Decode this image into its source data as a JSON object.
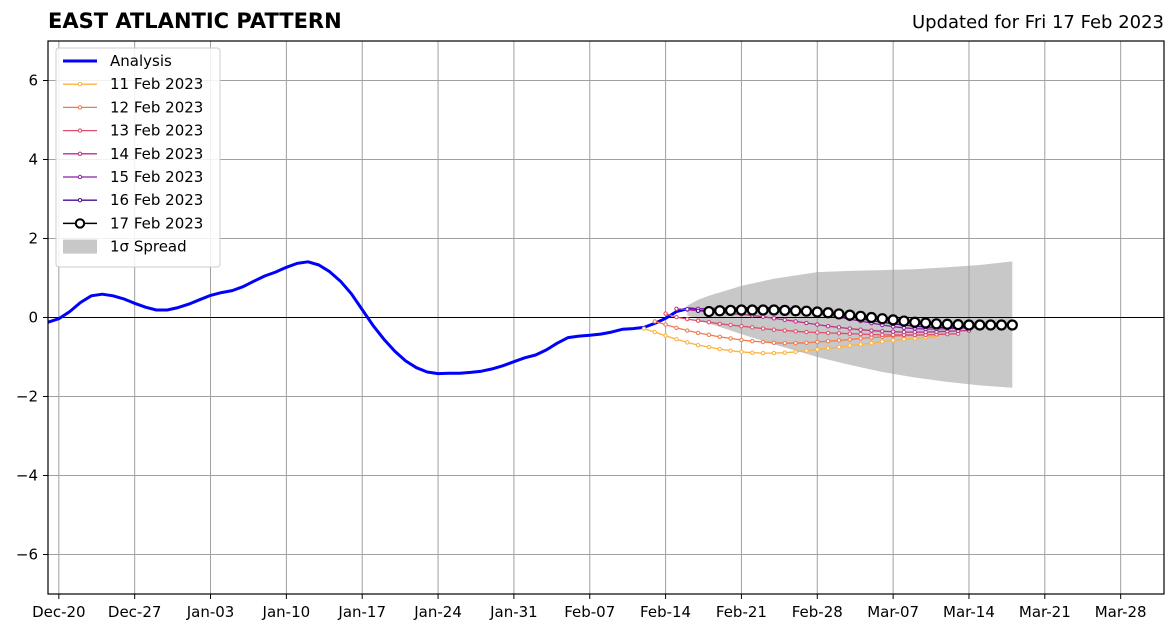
{
  "header": {
    "title": "EAST ATLANTIC PATTERN",
    "updated": "Updated for Fri 17 Feb 2023"
  },
  "chart_data": {
    "type": "line",
    "title": "EAST ATLANTIC PATTERN",
    "subtitle": "Updated for Fri 17 Feb 2023",
    "xlabel": "",
    "ylabel": "",
    "ylim": [
      -7,
      7
    ],
    "xlim": [
      "2022-12-19",
      "2023-04-01"
    ],
    "yticks": [
      -6,
      -4,
      -2,
      0,
      2,
      4,
      6
    ],
    "ytick_labels": [
      "−6",
      "−4",
      "−2",
      "0",
      "2",
      "4",
      "6"
    ],
    "xticks": [
      "2022-12-20",
      "2022-12-27",
      "2023-01-03",
      "2023-01-10",
      "2023-01-17",
      "2023-01-24",
      "2023-01-31",
      "2023-02-07",
      "2023-02-14",
      "2023-02-21",
      "2023-02-28",
      "2023-03-07",
      "2023-03-14",
      "2023-03-21",
      "2023-03-28"
    ],
    "xtick_labels": [
      "Dec-20",
      "Dec-27",
      "Jan-03",
      "Jan-10",
      "Jan-17",
      "Jan-24",
      "Jan-31",
      "Feb-07",
      "Feb-14",
      "Feb-21",
      "Feb-28",
      "Mar-07",
      "Mar-14",
      "Mar-21",
      "Mar-28"
    ],
    "grid": true,
    "legend_position": "upper-left",
    "legend": [
      "Analysis",
      "11 Feb 2023",
      "12 Feb 2023",
      "13 Feb 2023",
      "14 Feb 2023",
      "15 Feb 2023",
      "16 Feb 2023",
      "17 Feb 2023",
      "1σ Spread"
    ],
    "analysis": {
      "name": "Analysis",
      "color": "#0000ff",
      "start": "2022-12-19",
      "values": [
        -0.12,
        -0.03,
        0.15,
        0.38,
        0.55,
        0.59,
        0.55,
        0.47,
        0.36,
        0.26,
        0.19,
        0.19,
        0.25,
        0.34,
        0.45,
        0.56,
        0.63,
        0.68,
        0.78,
        0.92,
        1.05,
        1.15,
        1.27,
        1.37,
        1.41,
        1.33,
        1.16,
        0.92,
        0.6,
        0.2,
        -0.2,
        -0.55,
        -0.85,
        -1.1,
        -1.27,
        -1.38,
        -1.42,
        -1.41,
        -1.41,
        -1.39,
        -1.36,
        -1.3,
        -1.22,
        -1.12,
        -1.02,
        -0.95,
        -0.82,
        -0.65,
        -0.51,
        -0.47,
        -0.45,
        -0.42,
        -0.37,
        -0.3,
        -0.28,
        -0.25,
        -0.15,
        -0.02,
        0.15,
        0.22,
        0.2
      ]
    },
    "forecasts": [
      {
        "name": "11 Feb 2023",
        "color": "#fdb23c",
        "start": "2023-02-12",
        "values": [
          -0.28,
          -0.37,
          -0.46,
          -0.55,
          -0.63,
          -0.7,
          -0.75,
          -0.8,
          -0.84,
          -0.87,
          -0.89,
          -0.9,
          -0.9,
          -0.89,
          -0.87,
          -0.84,
          -0.81,
          -0.78,
          -0.75,
          -0.71,
          -0.68,
          -0.65,
          -0.61,
          -0.58,
          -0.55,
          -0.53,
          -0.5,
          -0.48
        ]
      },
      {
        "name": "12 Feb 2023",
        "color": "#f3794d",
        "start": "2023-02-13",
        "values": [
          -0.1,
          -0.18,
          -0.26,
          -0.33,
          -0.39,
          -0.44,
          -0.49,
          -0.53,
          -0.57,
          -0.6,
          -0.62,
          -0.64,
          -0.65,
          -0.65,
          -0.64,
          -0.62,
          -0.6,
          -0.58,
          -0.56,
          -0.53,
          -0.51,
          -0.49,
          -0.47,
          -0.46,
          -0.45,
          -0.44,
          -0.43,
          -0.42
        ]
      },
      {
        "name": "13 Feb 2023",
        "color": "#dd4f6f",
        "start": "2023-02-14",
        "values": [
          0.1,
          0.01,
          -0.04,
          -0.08,
          -0.12,
          -0.16,
          -0.19,
          -0.22,
          -0.25,
          -0.28,
          -0.31,
          -0.33,
          -0.35,
          -0.37,
          -0.38,
          -0.39,
          -0.4,
          -0.41,
          -0.42,
          -0.43,
          -0.44,
          -0.44,
          -0.44,
          -0.44,
          -0.44,
          -0.43,
          -0.42,
          -0.41
        ]
      },
      {
        "name": "14 Feb 2023",
        "color": "#b83289",
        "start": "2023-02-15",
        "values": [
          0.22,
          0.2,
          0.17,
          0.15,
          0.13,
          0.1,
          0.08,
          0.05,
          0.02,
          -0.02,
          -0.06,
          -0.1,
          -0.14,
          -0.18,
          -0.22,
          -0.25,
          -0.28,
          -0.31,
          -0.33,
          -0.35,
          -0.36,
          -0.37,
          -0.37,
          -0.37,
          -0.36,
          -0.35,
          -0.34,
          -0.33
        ]
      },
      {
        "name": "15 Feb 2023",
        "color": "#8a1ea0",
        "start": "2023-02-16",
        "values": [
          0.21,
          0.22,
          0.23,
          0.24,
          0.24,
          0.25,
          0.25,
          0.25,
          0.24,
          0.22,
          0.19,
          0.15,
          0.11,
          0.06,
          0.01,
          -0.04,
          -0.09,
          -0.14,
          -0.19,
          -0.23,
          -0.26,
          -0.28,
          -0.29,
          -0.29,
          -0.28,
          -0.27,
          -0.26,
          -0.25
        ]
      },
      {
        "name": "16 Feb 2023",
        "color": "#4a0c8f",
        "start": "2023-02-17",
        "values": [
          0.17,
          0.19,
          0.21,
          0.22,
          0.23,
          0.24,
          0.25,
          0.25,
          0.24,
          0.22,
          0.2,
          0.16,
          0.12,
          0.07,
          0.02,
          -0.03,
          -0.08,
          -0.12,
          -0.16,
          -0.19,
          -0.22,
          -0.24,
          -0.25,
          -0.25,
          -0.24,
          -0.23,
          -0.22,
          -0.21
        ]
      },
      {
        "name": "17 Feb 2023",
        "color": "#000000",
        "start": "2023-02-18",
        "values": [
          0.15,
          0.17,
          0.18,
          0.19,
          0.19,
          0.19,
          0.19,
          0.18,
          0.17,
          0.16,
          0.14,
          0.12,
          0.09,
          0.06,
          0.03,
          0.0,
          -0.03,
          -0.06,
          -0.09,
          -0.12,
          -0.14,
          -0.16,
          -0.17,
          -0.18,
          -0.19,
          -0.19,
          -0.19,
          -0.19,
          -0.19
        ]
      }
    ],
    "spread": {
      "name": "1σ Spread",
      "color": "#c8c8c8",
      "dates": [
        "2023-02-16",
        "2023-02-17",
        "2023-02-18",
        "2023-02-21",
        "2023-02-24",
        "2023-02-28",
        "2023-03-03",
        "2023-03-06",
        "2023-03-09",
        "2023-03-12",
        "2023-03-15",
        "2023-03-18"
      ],
      "upper": [
        0.3,
        0.45,
        0.55,
        0.8,
        0.98,
        1.15,
        1.18,
        1.2,
        1.22,
        1.27,
        1.33,
        1.42
      ],
      "lower": [
        0.05,
        -0.05,
        -0.15,
        -0.42,
        -0.68,
        -1.0,
        -1.2,
        -1.38,
        -1.52,
        -1.63,
        -1.72,
        -1.78
      ]
    }
  }
}
